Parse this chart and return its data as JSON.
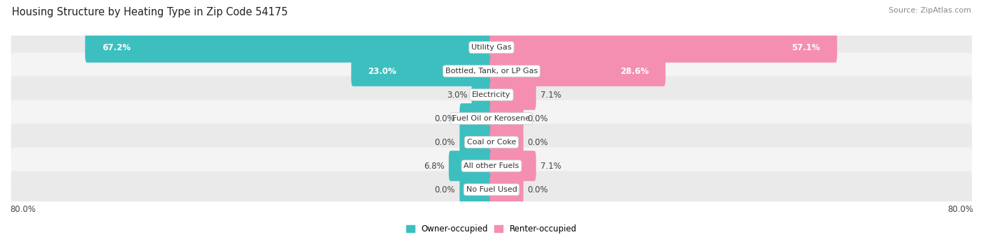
{
  "title": "Housing Structure by Heating Type in Zip Code 54175",
  "source": "Source: ZipAtlas.com",
  "categories": [
    "Utility Gas",
    "Bottled, Tank, or LP Gas",
    "Electricity",
    "Fuel Oil or Kerosene",
    "Coal or Coke",
    "All other Fuels",
    "No Fuel Used"
  ],
  "owner_values": [
    67.2,
    23.0,
    3.0,
    0.0,
    0.0,
    6.8,
    0.0
  ],
  "renter_values": [
    57.1,
    28.6,
    7.1,
    0.0,
    0.0,
    7.1,
    0.0
  ],
  "owner_color": "#3DBFBF",
  "renter_color": "#F48FB1",
  "row_bg_even": "#EAEAEA",
  "row_bg_odd": "#F4F4F4",
  "axis_max": 80.0,
  "stub_size": 5.0,
  "title_fontsize": 10.5,
  "source_fontsize": 8,
  "label_fontsize": 8.5,
  "bar_label_fontsize": 8.5,
  "category_fontsize": 8
}
